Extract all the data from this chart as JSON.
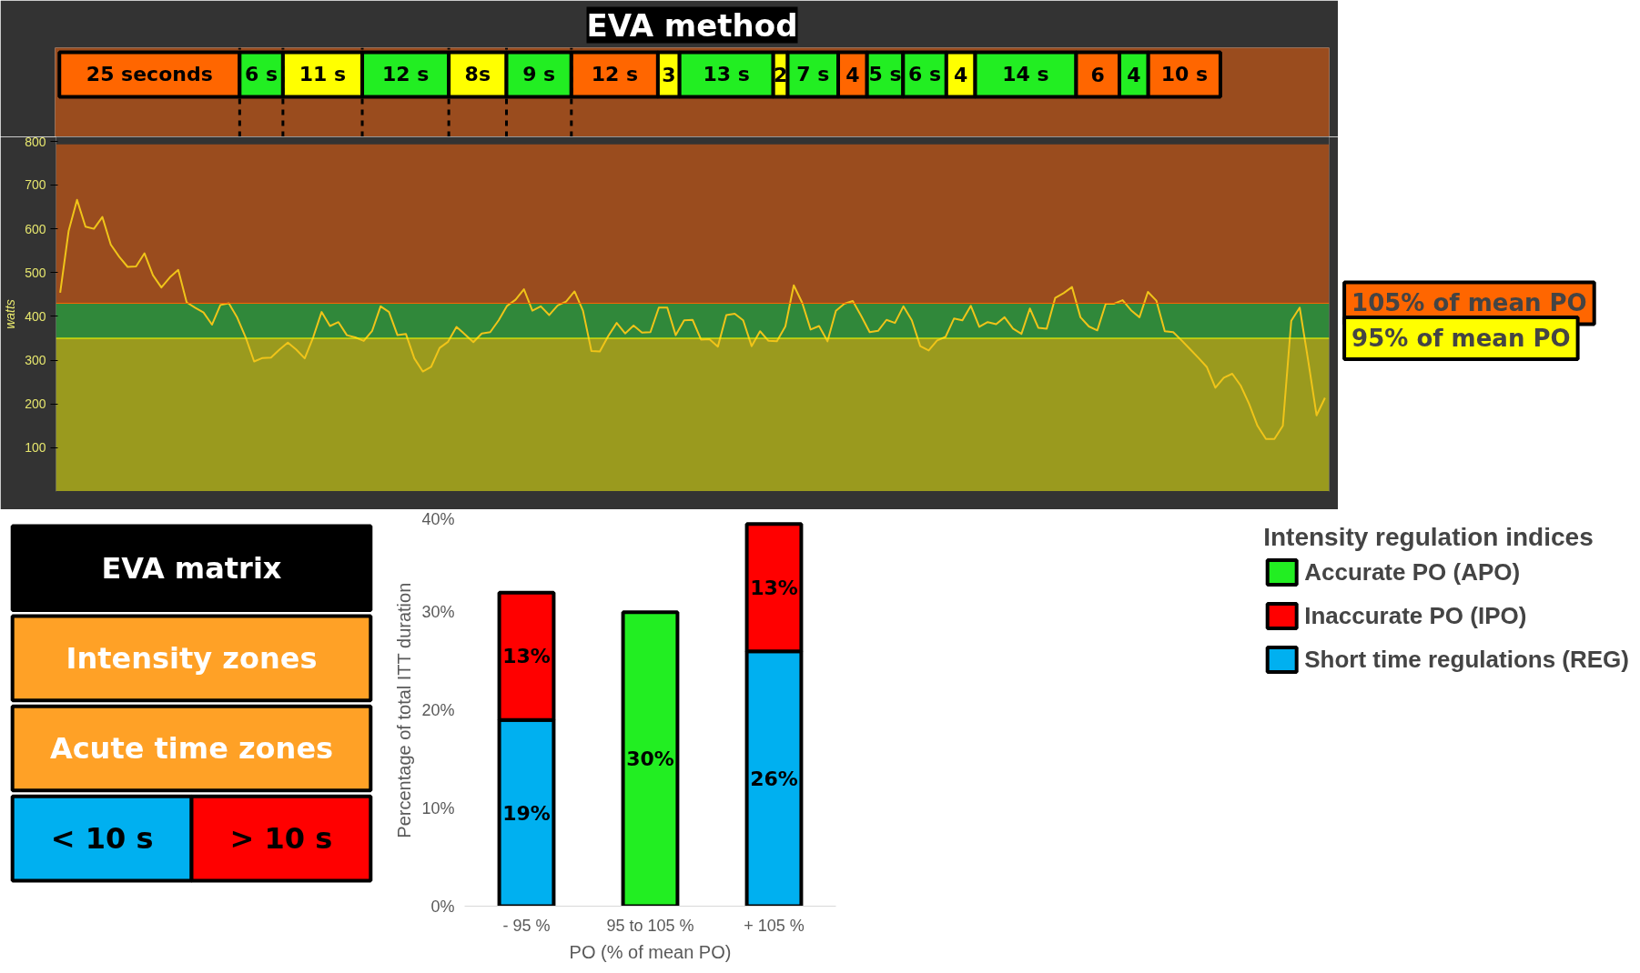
{
  "chart_data": [
    {
      "type": "bar",
      "orientation": "horizontal",
      "stacked": true,
      "title": "EVA method",
      "categories": [
        null
      ],
      "series": [
        {
          "color": "#ff6600",
          "values": [
            25
          ],
          "value_labels": [
            "25 seconds"
          ]
        },
        {
          "color": "#22ee22",
          "values": [
            6
          ],
          "value_labels": [
            "6 s"
          ]
        },
        {
          "color": "#ffff00",
          "values": [
            11
          ],
          "value_labels": [
            "11 s"
          ]
        },
        {
          "color": "#22ee22",
          "values": [
            12
          ],
          "value_labels": [
            "12 s"
          ]
        },
        {
          "color": "#ffff00",
          "values": [
            8
          ],
          "value_labels": [
            "8s"
          ]
        },
        {
          "color": "#22ee22",
          "values": [
            9
          ],
          "value_labels": [
            "9 s"
          ]
        },
        {
          "color": "#ff6600",
          "values": [
            12
          ],
          "value_labels": [
            "12 s"
          ]
        },
        {
          "color": "#ffff00",
          "values": [
            3
          ],
          "value_labels": [
            "3"
          ]
        },
        {
          "color": "#22ee22",
          "values": [
            13
          ],
          "value_labels": [
            "13 s"
          ]
        },
        {
          "color": "#ffff00",
          "values": [
            2
          ],
          "value_labels": [
            "2"
          ]
        },
        {
          "color": "#22ee22",
          "values": [
            7
          ],
          "value_labels": [
            "7 s"
          ]
        },
        {
          "color": "#ff6600",
          "values": [
            4
          ],
          "value_labels": [
            "4"
          ]
        },
        {
          "color": "#22ee22",
          "values": [
            5
          ],
          "value_labels": [
            "5 s"
          ]
        },
        {
          "color": "#22ee22",
          "values": [
            6
          ],
          "value_labels": [
            "6 s"
          ]
        },
        {
          "color": "#ffff00",
          "values": [
            4
          ],
          "value_labels": [
            "4"
          ]
        },
        {
          "color": "#22ee22",
          "values": [
            14
          ],
          "value_labels": [
            "14 s"
          ]
        },
        {
          "color": "#ff6600",
          "values": [
            6
          ],
          "value_labels": [
            "6"
          ]
        },
        {
          "color": "#22ee22",
          "values": [
            4
          ],
          "value_labels": [
            "4"
          ]
        },
        {
          "color": "#ff6600",
          "values": [
            10
          ],
          "value_labels": [
            "10 s"
          ]
        }
      ],
      "ref_lines": [
        {
          "axis": "x",
          "value": 25,
          "line_style": "dashed",
          "color": "#000000"
        },
        {
          "axis": "x",
          "value": 31,
          "line_style": "dashed",
          "color": "#000000"
        },
        {
          "axis": "x",
          "value": 42,
          "line_style": "dashed",
          "color": "#000000"
        },
        {
          "axis": "x",
          "value": 54,
          "line_style": "dashed",
          "color": "#000000"
        },
        {
          "axis": "x",
          "value": 62,
          "line_style": "dashed",
          "color": "#000000"
        },
        {
          "axis": "x",
          "value": 71,
          "line_style": "dashed",
          "color": "#000000"
        }
      ]
    },
    {
      "type": "line",
      "ylabel": "watts",
      "ylim": [
        0,
        810
      ],
      "yticks": [
        100,
        200,
        300,
        400,
        500,
        600,
        700,
        800
      ],
      "tick_labels": "y",
      "grid": false,
      "categories": [
        null,
        null,
        null,
        null,
        null,
        null,
        null,
        null,
        null,
        null,
        null,
        null,
        null,
        null,
        null,
        null,
        null,
        null,
        null,
        null,
        null,
        null,
        null,
        null,
        null,
        null,
        null,
        null,
        null,
        null,
        null,
        null,
        null,
        null,
        null,
        null,
        null,
        null,
        null,
        null,
        null,
        null,
        null,
        null,
        null,
        null,
        null,
        null,
        null,
        null,
        null,
        null,
        null,
        null,
        null,
        null,
        null,
        null,
        null,
        null,
        null,
        null,
        null,
        null,
        null,
        null,
        null,
        null,
        null,
        null,
        null,
        null,
        null,
        null,
        null,
        null,
        null,
        null,
        null,
        null,
        null,
        null,
        null,
        null,
        null,
        null,
        null,
        null,
        null,
        null,
        null,
        null,
        null,
        null,
        null,
        null,
        null,
        null,
        null,
        null,
        null,
        null,
        null,
        null,
        null,
        null,
        null,
        null,
        null,
        null,
        null,
        null,
        null,
        null,
        null,
        null,
        null,
        null,
        null,
        null,
        null,
        null,
        null,
        null,
        null,
        null,
        null,
        null,
        null,
        null,
        null,
        null,
        null,
        null,
        null,
        null,
        null,
        null,
        null,
        null,
        null,
        null,
        null,
        null,
        null,
        null,
        null,
        null,
        null,
        null,
        null
      ],
      "series": [
        {
          "color": "#f0c419",
          "values": [
            454,
            595,
            666,
            605,
            600,
            627,
            564,
            536,
            513,
            514,
            544,
            494,
            466,
            489,
            506,
            432,
            420,
            409,
            381,
            426,
            430,
            397,
            352,
            297,
            305,
            306,
            324,
            340,
            324,
            304,
            352,
            410,
            378,
            387,
            357,
            352,
            344,
            367,
            423,
            410,
            357,
            360,
            304,
            274,
            285,
            328,
            342,
            376,
            359,
            341,
            361,
            364,
            391,
            424,
            438,
            462,
            413,
            423,
            403,
            425,
            434,
            457,
            413,
            321,
            320,
            355,
            385,
            361,
            379,
            363,
            364,
            420,
            420,
            357,
            391,
            392,
            347,
            348,
            331,
            403,
            406,
            391,
            332,
            366,
            344,
            343,
            377,
            471,
            431,
            370,
            378,
            343,
            413,
            429,
            435,
            401,
            364,
            367,
            392,
            385,
            423,
            391,
            332,
            322,
            345,
            353,
            395,
            391,
            424,
            376,
            387,
            382,
            398,
            372,
            360,
            418,
            374,
            372,
            442,
            453,
            467,
            398,
            377,
            368,
            429,
            429,
            437,
            414,
            398,
            456,
            436,
            366,
            364,
            345,
            325,
            305,
            284,
            237,
            260,
            269,
            242,
            200,
            150,
            120,
            120,
            150,
            390,
            420,
            300,
            174,
            214
          ]
        }
      ],
      "bands": [
        {
          "axis": "y",
          "from": 430,
          "to": 793,
          "color": "#9a4c1e"
        },
        {
          "axis": "y",
          "from": 350,
          "to": 430,
          "color": "#30883a"
        },
        {
          "axis": "y",
          "from": 0,
          "to": 350,
          "color": "#9a9a1e"
        }
      ],
      "ref_lines": [
        {
          "axis": "y",
          "value": 430,
          "label": "105% of mean PO",
          "color": "#ff6600"
        },
        {
          "axis": "y",
          "value": 350,
          "label": "95% of mean PO",
          "color": "#ffff00"
        }
      ]
    },
    {
      "type": "other",
      "title": "EVA matrix",
      "annotations": [
        "Intensity zones",
        "Acute time zones",
        "< 10 s",
        "> 10 s"
      ],
      "colors": [
        "#ffa126",
        "#ffa126",
        "#00b0f0",
        "#ff0000"
      ]
    },
    {
      "type": "bar",
      "stacked": true,
      "categories": [
        "- 95 %",
        "95 to 105 %",
        "+ 105 %"
      ],
      "series": [
        {
          "name": "Short time regulations (REG)",
          "color": "#00b0f0",
          "values": [
            19,
            null,
            26
          ],
          "value_labels": [
            "19%",
            null,
            "26%"
          ]
        },
        {
          "name": "Inaccurate PO (IPO)",
          "color": "#ff0000",
          "values": [
            13,
            null,
            13
          ],
          "value_labels": [
            "13%",
            null,
            "13%"
          ]
        },
        {
          "name": "Accurate PO (APO)",
          "color": "#22ee22",
          "values": [
            null,
            30,
            null
          ],
          "value_labels": [
            null,
            "30%",
            null
          ]
        }
      ],
      "ylim": [
        0,
        40
      ],
      "yticks": [
        {
          "value": 0,
          "label": "0%"
        },
        {
          "value": 10,
          "label": "10%"
        },
        {
          "value": 20,
          "label": "20%"
        },
        {
          "value": 30,
          "label": "30%"
        },
        {
          "value": 40,
          "label": "40%"
        }
      ],
      "ylabel": "Percentage of total ITT duration",
      "xlabel": "PO (% of mean PO)",
      "legend": "right",
      "legend_title": "Intensity regulation indices",
      "grid": false
    }
  ]
}
